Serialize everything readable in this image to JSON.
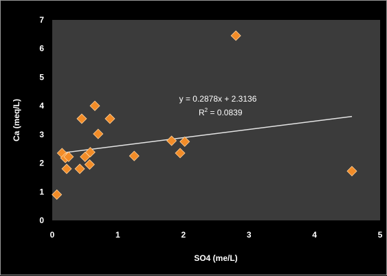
{
  "chart_data": {
    "type": "scatter",
    "xlabel": "SO4 (me/L)",
    "ylabel": "Ca (meq/L)",
    "xlim": [
      0,
      5
    ],
    "ylim": [
      0,
      7
    ],
    "x_ticks": [
      "0",
      "1",
      "2",
      "3",
      "4",
      "5"
    ],
    "y_ticks": [
      "0",
      "1",
      "2",
      "3",
      "4",
      "5",
      "6",
      "7"
    ],
    "grid": false,
    "series": [
      {
        "x": [
          0.07,
          0.15,
          0.2,
          0.22,
          0.25,
          0.42,
          0.45,
          0.5,
          0.57,
          0.58,
          0.65,
          0.7,
          0.88,
          1.25,
          1.82,
          1.95,
          2.02,
          2.8,
          4.57
        ],
        "y": [
          0.9,
          2.35,
          2.18,
          1.8,
          2.22,
          1.8,
          3.55,
          2.22,
          1.95,
          2.38,
          4.0,
          3.02,
          3.55,
          2.25,
          2.78,
          2.35,
          2.75,
          6.45,
          1.72
        ]
      }
    ],
    "trendline": {
      "slope": 0.2878,
      "intercept": 2.3136
    },
    "equation_text": "y = 0.2878x + 2.3136",
    "r2_prefix": "R",
    "r2_exp": "2",
    "r2_suffix": " = 0.0839",
    "colors": {
      "background": "#000000",
      "plot_area": "#3b3b3b",
      "marker": "#f28c28",
      "marker_edge": "#ffd19a",
      "trendline": "#e6e6e6",
      "text": "#ffffff"
    }
  }
}
